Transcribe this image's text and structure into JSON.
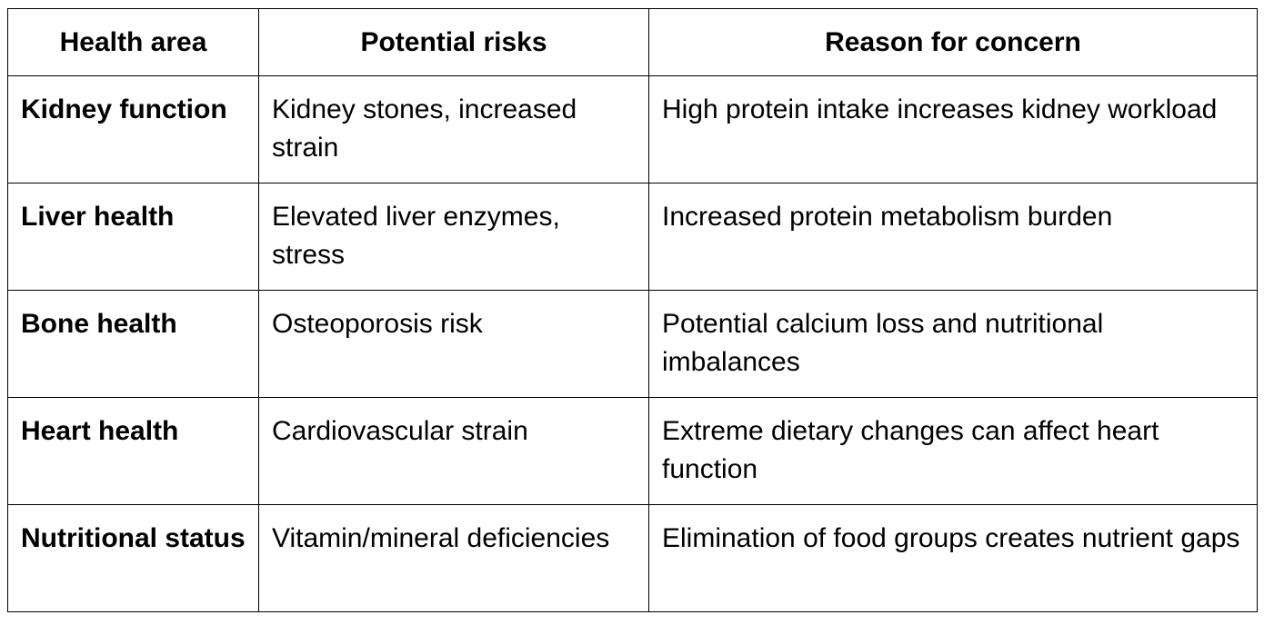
{
  "table": {
    "headers": [
      "Health area",
      "Potential risks",
      "Reason for concern"
    ],
    "rows": [
      [
        "Kidney function",
        "Kidney stones, increased strain",
        "High protein intake increases kidney workload"
      ],
      [
        "Liver health",
        "Elevated liver enzymes, stress",
        "Increased protein metabolism burden"
      ],
      [
        "Bone health",
        "Osteoporosis risk",
        "Potential calcium loss and nutritional imbalances"
      ],
      [
        "Heart health",
        "Cardiovascular strain",
        "Extreme dietary changes can affect heart function"
      ],
      [
        "Nutritional status",
        "Vitamin/mineral deficiencies",
        "Elimination of food groups creates nutrient gaps"
      ]
    ]
  }
}
